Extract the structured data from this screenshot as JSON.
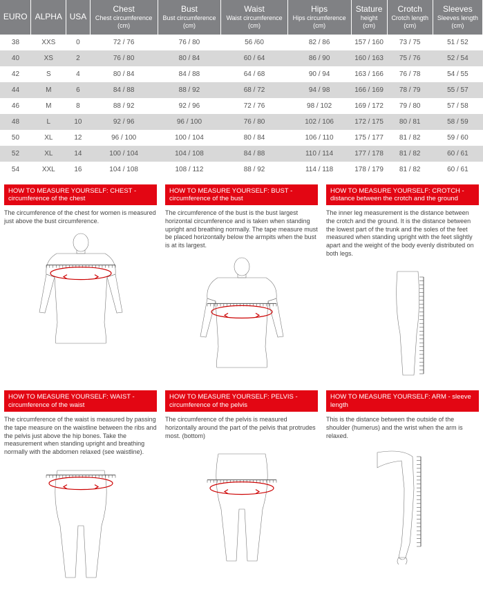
{
  "table": {
    "columns": [
      {
        "main": "EURO",
        "sub": "",
        "unit": ""
      },
      {
        "main": "ALPHA",
        "sub": "",
        "unit": ""
      },
      {
        "main": "USA",
        "sub": "",
        "unit": ""
      },
      {
        "main": "Chest",
        "sub": "Chest circumference",
        "unit": "(cm)"
      },
      {
        "main": "Bust",
        "sub": "Bust circumference",
        "unit": "(cm)"
      },
      {
        "main": "Waist",
        "sub": "Waist circumference",
        "unit": "(cm)"
      },
      {
        "main": "Hips",
        "sub": "Hips circumference",
        "unit": "(cm)"
      },
      {
        "main": "Stature",
        "sub": "height",
        "unit": "(cm)"
      },
      {
        "main": "Crotch",
        "sub": "Crotch length",
        "unit": "(cm)"
      },
      {
        "main": "Sleeves",
        "sub": "Sleeves length",
        "unit": "(cm)"
      }
    ],
    "rows": [
      [
        "38",
        "XXS",
        "0",
        "72 / 76",
        "76 / 80",
        "56 /60",
        "82 / 86",
        "157 / 160",
        "73 / 75",
        "51 / 52"
      ],
      [
        "40",
        "XS",
        "2",
        "76 / 80",
        "80 / 84",
        "60 / 64",
        "86 / 90",
        "160 / 163",
        "75 / 76",
        "52 / 54"
      ],
      [
        "42",
        "S",
        "4",
        "80 / 84",
        "84 / 88",
        "64 / 68",
        "90 / 94",
        "163 / 166",
        "76 / 78",
        "54 / 55"
      ],
      [
        "44",
        "M",
        "6",
        "84 / 88",
        "88 / 92",
        "68 / 72",
        "94 / 98",
        "166 / 169",
        "78 / 79",
        "55 / 57"
      ],
      [
        "46",
        "M",
        "8",
        "88 / 92",
        "92 / 96",
        "72 / 76",
        "98 / 102",
        "169 / 172",
        "79 / 80",
        "57 / 58"
      ],
      [
        "48",
        "L",
        "10",
        "92 / 96",
        "96 / 100",
        "76 / 80",
        "102 / 106",
        "172 / 175",
        "80 / 81",
        "58 / 59"
      ],
      [
        "50",
        "XL",
        "12",
        "96 / 100",
        "100 / 104",
        "80 / 84",
        "106 / 110",
        "175 / 177",
        "81 / 82",
        "59 / 60"
      ],
      [
        "52",
        "XL",
        "14",
        "100 / 104",
        "104 / 108",
        "84 / 88",
        "110 / 114",
        "177 / 178",
        "81 / 82",
        "60 / 61"
      ],
      [
        "54",
        "XXL",
        "16",
        "104 / 108",
        "108 / 112",
        "88 / 92",
        "114 / 118",
        "178 / 179",
        "81 / 82",
        "60 / 61"
      ]
    ],
    "header_bg": "#808184",
    "row_even_bg": "#d8d8d8",
    "row_odd_bg": "#ffffff",
    "header_text_color": "#ffffff",
    "cell_text_color": "#555555"
  },
  "measurements": [
    {
      "title": "HOW TO MEASURE YOURSELF: CHEST - circumference of the chest",
      "body": "The circumference of the chest for women is measured just above the bust circumference.",
      "figure": "chest"
    },
    {
      "title": "HOW TO MEASURE YOURSELF: BUST - circumference of the bust",
      "body": "The circumference of the bust is the bust largest horizontal circumference and is taken when standing upright and breathing normally. The tape measure must be placed horizontally below the armpits when the bust is at its largest.",
      "figure": "bust"
    },
    {
      "title": "HOW TO MEASURE YOURSELF: CROTCH - distance between the crotch and the ground",
      "body": "The inner leg measurement is the distance between the crotch and the ground. It is the distance between the lowest part of the trunk and the soles of the feet measured when standing upright with the feet slightly apart and the weight of the body evenly distributed on both legs.",
      "figure": "crotch"
    },
    {
      "title": "HOW TO MEASURE YOURSELF: WAIST - circumference of the waist",
      "body": "The circumference of the waist is measured by passing the tape measure on the waistline between the ribs and the pelvis just above the hip bones. Take the measurement when standing upright and breathing normally with the abdomen relaxed (see waistline).",
      "figure": "waist"
    },
    {
      "title": "HOW TO MEASURE YOURSELF: PELVIS - circumference of the pelvis",
      "body": "The circumference of the pelvis is measured horizontally around the part of the pelvis that protrudes most. (bottom)",
      "figure": "pelvis"
    },
    {
      "title": "HOW TO MEASURE YOURSELF: ARM - sleeve length",
      "body": "This is the distance between the outside of the shoulder (humerus) and the wrist when the arm is relaxed.",
      "figure": "arm"
    }
  ],
  "colors": {
    "title_bg": "#e30613",
    "title_text": "#ffffff",
    "body_text": "#444444",
    "figure_line": "#777777",
    "tape": "#cc0000",
    "ruler": "#555555"
  }
}
